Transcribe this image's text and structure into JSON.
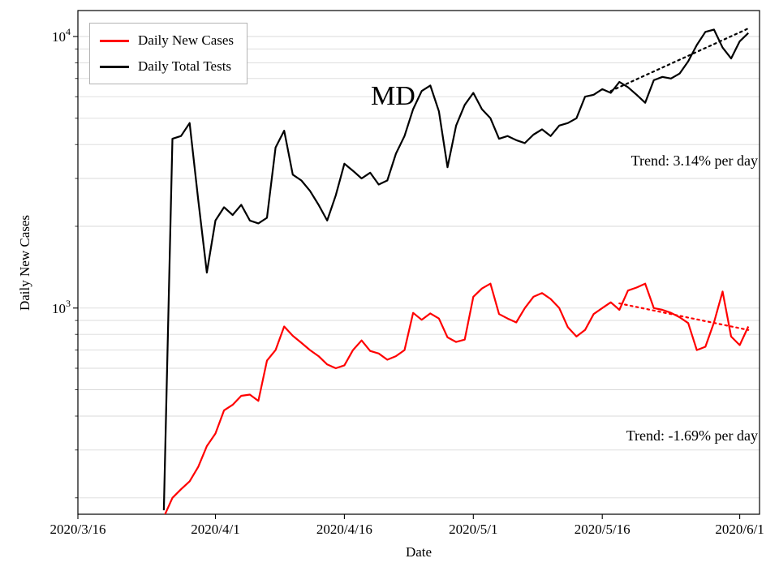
{
  "chart_data": {
    "type": "line",
    "state_label": "MD",
    "xlabel": "Date",
    "ylabel": "Daily New Cases",
    "yscale": "log",
    "ylim": [
      174,
      12460
    ],
    "x_domain_days": [
      0,
      79.3
    ],
    "x_epoch": "2020/3/16",
    "grid": {
      "horizontal": true,
      "color": "#d9d9d9"
    },
    "x_ticks": [
      {
        "label": "2020/3/16",
        "date": "2020/3/16"
      },
      {
        "label": "2020/4/1",
        "date": "2020/4/1"
      },
      {
        "label": "2020/4/16",
        "date": "2020/4/16"
      },
      {
        "label": "2020/5/1",
        "date": "2020/5/1"
      },
      {
        "label": "2020/5/16",
        "date": "2020/5/16"
      },
      {
        "label": "2020/6/1",
        "date": "2020/6/1"
      }
    ],
    "y_ticks": [
      {
        "value": 1000,
        "base": "10",
        "exp": "3"
      },
      {
        "value": 10000,
        "base": "10",
        "exp": "4"
      }
    ],
    "legend": {
      "position": "upper left",
      "entries": [
        {
          "label": "Daily New Cases",
          "color": "#ff0000"
        },
        {
          "label": "Daily Total Tests",
          "color": "#000000"
        }
      ]
    },
    "dates": [
      "2020/3/26",
      "2020/3/27",
      "2020/3/28",
      "2020/3/29",
      "2020/3/30",
      "2020/3/31",
      "2020/4/1",
      "2020/4/2",
      "2020/4/3",
      "2020/4/4",
      "2020/4/5",
      "2020/4/6",
      "2020/4/7",
      "2020/4/8",
      "2020/4/9",
      "2020/4/10",
      "2020/4/11",
      "2020/4/12",
      "2020/4/13",
      "2020/4/14",
      "2020/4/15",
      "2020/4/16",
      "2020/4/17",
      "2020/4/18",
      "2020/4/19",
      "2020/4/20",
      "2020/4/21",
      "2020/4/22",
      "2020/4/23",
      "2020/4/24",
      "2020/4/25",
      "2020/4/26",
      "2020/4/27",
      "2020/4/28",
      "2020/4/29",
      "2020/4/30",
      "2020/5/1",
      "2020/5/2",
      "2020/5/3",
      "2020/5/4",
      "2020/5/5",
      "2020/5/6",
      "2020/5/7",
      "2020/5/8",
      "2020/5/9",
      "2020/5/10",
      "2020/5/11",
      "2020/5/12",
      "2020/5/13",
      "2020/5/14",
      "2020/5/15",
      "2020/5/16",
      "2020/5/17",
      "2020/5/18",
      "2020/5/19",
      "2020/5/20",
      "2020/5/21",
      "2020/5/22",
      "2020/5/23",
      "2020/5/24",
      "2020/5/25",
      "2020/5/26",
      "2020/5/27",
      "2020/5/28",
      "2020/5/29",
      "2020/5/30",
      "2020/5/31",
      "2020/6/1",
      "2020/6/2"
    ],
    "series": [
      {
        "name": "Daily New Cases",
        "color": "#ff0000",
        "values": [
          170,
          200,
          215,
          230,
          260,
          310,
          345,
          420,
          440,
          475,
          480,
          455,
          640,
          700,
          855,
          790,
          745,
          700,
          665,
          620,
          600,
          615,
          700,
          760,
          695,
          680,
          645,
          665,
          700,
          960,
          905,
          955,
          915,
          780,
          750,
          765,
          1100,
          1180,
          1230,
          950,
          915,
          885,
          1000,
          1100,
          1135,
          1080,
          1000,
          850,
          785,
          830,
          950,
          1000,
          1050,
          985,
          1160,
          1190,
          1230,
          1000,
          985,
          960,
          925,
          880,
          700,
          720,
          885,
          1150,
          785,
          730,
          855
        ]
      },
      {
        "name": "Daily Total Tests",
        "color": "#000000",
        "values": [
          180,
          4200,
          4300,
          4800,
          2500,
          1350,
          2100,
          2350,
          2200,
          2400,
          2100,
          2050,
          2150,
          3900,
          4500,
          3100,
          2950,
          2700,
          2400,
          2100,
          2600,
          3400,
          3200,
          3000,
          3150,
          2850,
          2950,
          3700,
          4300,
          5400,
          6300,
          6600,
          5300,
          3300,
          4700,
          5600,
          6200,
          5400,
          5000,
          4200,
          4300,
          4150,
          4050,
          4350,
          4550,
          4300,
          4700,
          4800,
          5000,
          6000,
          6100,
          6400,
          6200,
          6800,
          6500,
          6100,
          5700,
          6900,
          7100,
          7000,
          7300,
          8100,
          9300,
          10400,
          10600,
          9100,
          8300,
          9600,
          10300
        ]
      }
    ],
    "trends": [
      {
        "series": "Daily Total Tests",
        "color": "#000000",
        "start_date": "2020/5/17",
        "start_value": 6300,
        "end_date": "2020/6/2",
        "end_value": 10700,
        "label": "Trend: 3.14% per day"
      },
      {
        "series": "Daily New Cases",
        "color": "#ff0000",
        "start_date": "2020/5/18",
        "start_value": 1040,
        "end_date": "2020/6/2",
        "end_value": 830,
        "label": "Trend: -1.69% per day"
      }
    ]
  }
}
